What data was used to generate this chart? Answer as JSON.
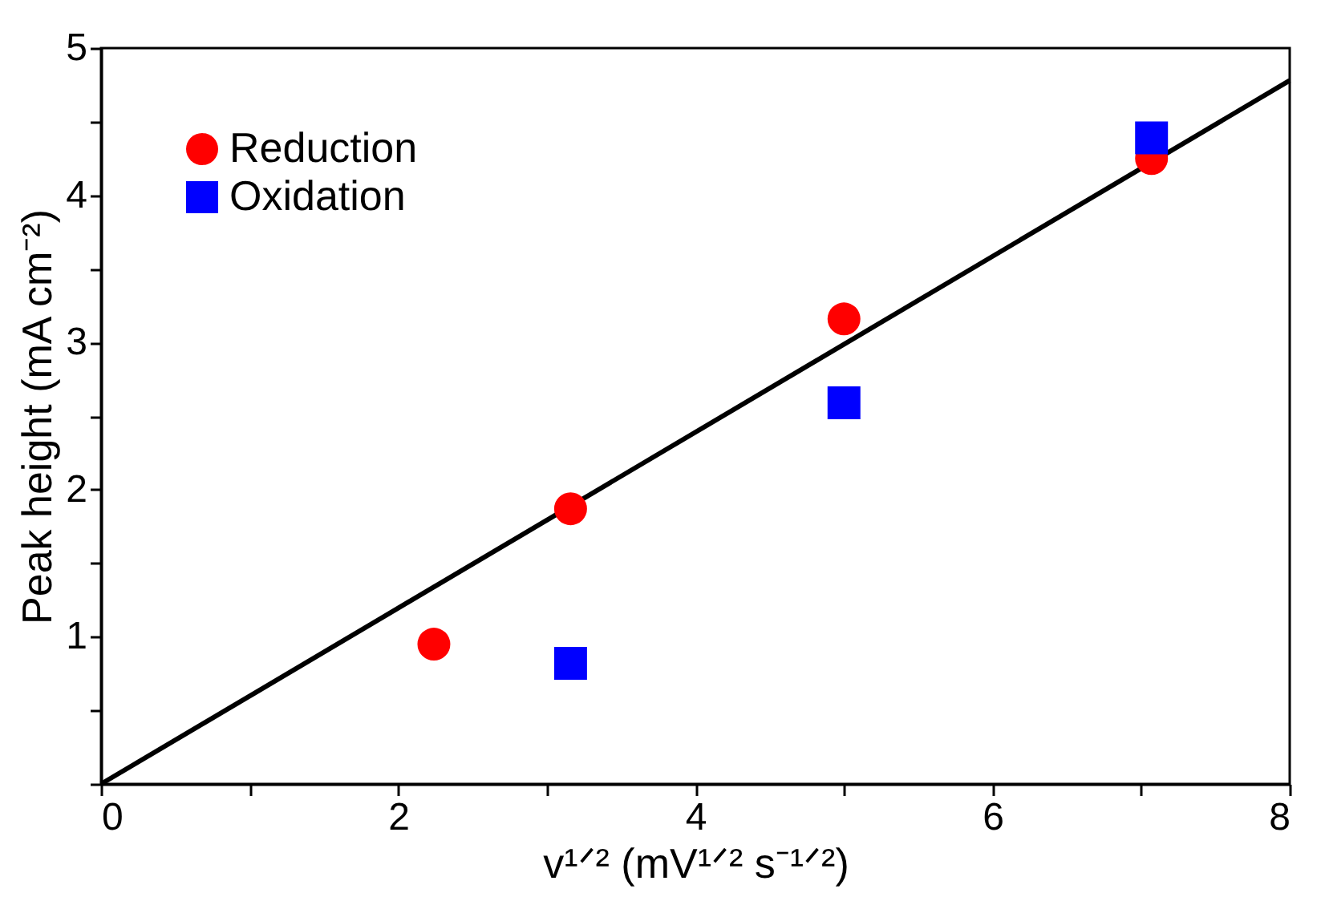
{
  "chart_data": {
    "type": "scatter",
    "xlabel": "v¹ᐟ² (mV¹ᐟ² s⁻¹ᐟ²)",
    "ylabel": "Peak height (mA cm⁻²)",
    "xlim": [
      0,
      8
    ],
    "ylim": [
      0,
      5
    ],
    "xticks": [
      0,
      {
        "value": 1,
        "label": null
      },
      2,
      {
        "value": 3,
        "label": null
      },
      4,
      {
        "value": 5,
        "label": null
      },
      6,
      {
        "value": 7,
        "label": null
      },
      8
    ],
    "yticks": [
      {
        "value": 0,
        "label": null
      },
      {
        "value": 0.5,
        "label": null
      },
      1,
      {
        "value": 1.5,
        "label": null
      },
      2,
      {
        "value": 2.5,
        "label": null
      },
      3,
      {
        "value": 3.5,
        "label": null
      },
      4,
      {
        "value": 4.5,
        "label": null
      },
      5
    ],
    "grid": false,
    "legend": "top left",
    "series": [
      {
        "name": "Reduction",
        "color": "#ff0000",
        "marker": "circle",
        "x": [
          2.24,
          3.16,
          5.0,
          7.07
        ],
        "values": [
          0.95,
          1.87,
          3.16,
          4.25
        ]
      },
      {
        "name": "Oxidation",
        "color": "#0000ff",
        "marker": "square",
        "x": [
          3.16,
          5.0,
          7.07
        ],
        "values": [
          0.82,
          2.59,
          4.39
        ]
      },
      {
        "type": "line",
        "color": "#000000",
        "x": [
          0,
          8
        ],
        "values": [
          0,
          4.78
        ]
      }
    ]
  }
}
